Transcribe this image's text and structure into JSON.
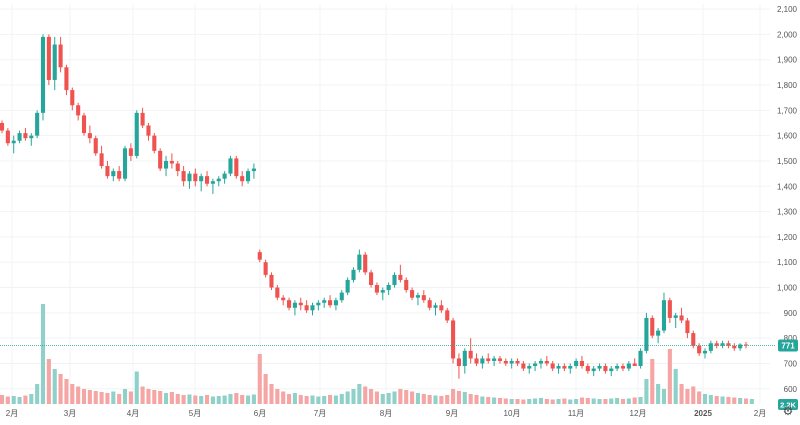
{
  "colors": {
    "up": "#26a69a",
    "down": "#ef5350",
    "up_volume": "#8fd1c9",
    "down_volume": "#f5a5a3",
    "grid": "#f0f3f5",
    "axis_text": "#555555",
    "price_line": "#26a69a",
    "price_label_bg": "#26a69a",
    "volume_label_bg": "#26a69a"
  },
  "current_price_label": "771",
  "volume_label": "2.2K",
  "settings_icon": "gear-icon",
  "chart_data": {
    "type": "candlestick",
    "title": "",
    "xlabel": "",
    "ylabel": "",
    "ylim": [
      540,
      2120
    ],
    "y_ticks": [
      "2,100",
      "2,000",
      "1,900",
      "1,800",
      "1,700",
      "1,600",
      "1,500",
      "1,400",
      "1,300",
      "1,200",
      "1,100",
      "1,000",
      "900",
      "800",
      "700",
      "600"
    ],
    "x_ticks": [
      "2月",
      "3月",
      "4月",
      "5月",
      "6月",
      "7月",
      "8月",
      "9月",
      "10月",
      "11月",
      "12月",
      "2025",
      "2月"
    ],
    "current_price": 771,
    "gaps_after_index": [
      43
    ],
    "ohlc": [
      [
        1650,
        1660,
        1610,
        1620
      ],
      [
        1620,
        1630,
        1560,
        1570
      ],
      [
        1570,
        1600,
        1530,
        1580
      ],
      [
        1580,
        1620,
        1570,
        1610
      ],
      [
        1610,
        1630,
        1580,
        1590
      ],
      [
        1590,
        1610,
        1560,
        1600
      ],
      [
        1600,
        1700,
        1590,
        1690
      ],
      [
        1690,
        2000,
        1660,
        1990
      ],
      [
        1990,
        2000,
        1800,
        1820
      ],
      [
        1820,
        1990,
        1780,
        1960
      ],
      [
        1960,
        1990,
        1850,
        1870
      ],
      [
        1870,
        1880,
        1760,
        1780
      ],
      [
        1780,
        1790,
        1700,
        1720
      ],
      [
        1720,
        1730,
        1660,
        1680
      ],
      [
        1680,
        1690,
        1600,
        1610
      ],
      [
        1610,
        1640,
        1570,
        1590
      ],
      [
        1590,
        1600,
        1520,
        1530
      ],
      [
        1530,
        1560,
        1470,
        1480
      ],
      [
        1480,
        1500,
        1430,
        1440
      ],
      [
        1440,
        1470,
        1420,
        1460
      ],
      [
        1460,
        1480,
        1420,
        1430
      ],
      [
        1430,
        1560,
        1420,
        1550
      ],
      [
        1550,
        1570,
        1500,
        1520
      ],
      [
        1520,
        1700,
        1510,
        1690
      ],
      [
        1690,
        1710,
        1630,
        1640
      ],
      [
        1640,
        1650,
        1580,
        1600
      ],
      [
        1600,
        1610,
        1530,
        1540
      ],
      [
        1540,
        1550,
        1460,
        1470
      ],
      [
        1470,
        1520,
        1440,
        1500
      ],
      [
        1500,
        1530,
        1470,
        1490
      ],
      [
        1490,
        1500,
        1440,
        1460
      ],
      [
        1460,
        1480,
        1400,
        1420
      ],
      [
        1420,
        1460,
        1390,
        1450
      ],
      [
        1450,
        1470,
        1400,
        1420
      ],
      [
        1420,
        1450,
        1380,
        1440
      ],
      [
        1440,
        1460,
        1400,
        1410
      ],
      [
        1410,
        1430,
        1370,
        1420
      ],
      [
        1420,
        1440,
        1400,
        1430
      ],
      [
        1430,
        1460,
        1410,
        1450
      ],
      [
        1450,
        1520,
        1440,
        1510
      ],
      [
        1510,
        1520,
        1430,
        1440
      ],
      [
        1440,
        1460,
        1400,
        1420
      ],
      [
        1420,
        1470,
        1410,
        1460
      ],
      [
        1460,
        1490,
        1430,
        1470
      ],
      [
        1140,
        1150,
        1100,
        1110
      ],
      [
        1100,
        1110,
        1040,
        1050
      ],
      [
        1050,
        1060,
        990,
        1000
      ],
      [
        1000,
        1010,
        950,
        960
      ],
      [
        960,
        970,
        930,
        950
      ],
      [
        950,
        960,
        910,
        920
      ],
      [
        920,
        950,
        890,
        940
      ],
      [
        940,
        960,
        910,
        930
      ],
      [
        930,
        950,
        900,
        910
      ],
      [
        910,
        940,
        890,
        930
      ],
      [
        930,
        950,
        910,
        940
      ],
      [
        940,
        960,
        920,
        950
      ],
      [
        950,
        970,
        920,
        930
      ],
      [
        930,
        960,
        910,
        950
      ],
      [
        950,
        990,
        940,
        980
      ],
      [
        980,
        1040,
        970,
        1030
      ],
      [
        1030,
        1080,
        1020,
        1070
      ],
      [
        1070,
        1150,
        1060,
        1130
      ],
      [
        1130,
        1140,
        1050,
        1060
      ],
      [
        1060,
        1070,
        1000,
        1010
      ],
      [
        1010,
        1020,
        970,
        980
      ],
      [
        980,
        1000,
        950,
        990
      ],
      [
        990,
        1020,
        970,
        1010
      ],
      [
        1010,
        1060,
        1000,
        1050
      ],
      [
        1050,
        1090,
        1020,
        1030
      ],
      [
        1030,
        1040,
        980,
        990
      ],
      [
        990,
        1000,
        950,
        960
      ],
      [
        960,
        980,
        930,
        970
      ],
      [
        970,
        990,
        940,
        950
      ],
      [
        950,
        960,
        910,
        920
      ],
      [
        920,
        940,
        890,
        930
      ],
      [
        930,
        950,
        900,
        910
      ],
      [
        910,
        920,
        860,
        870
      ],
      [
        870,
        880,
        700,
        720
      ],
      [
        720,
        740,
        640,
        690
      ],
      [
        690,
        760,
        660,
        750
      ],
      [
        750,
        800,
        700,
        720
      ],
      [
        720,
        740,
        690,
        700
      ],
      [
        700,
        730,
        680,
        720
      ],
      [
        720,
        740,
        700,
        710
      ],
      [
        710,
        730,
        690,
        720
      ],
      [
        720,
        730,
        700,
        710
      ],
      [
        710,
        720,
        690,
        700
      ],
      [
        700,
        720,
        680,
        710
      ],
      [
        710,
        720,
        690,
        700
      ],
      [
        700,
        710,
        670,
        680
      ],
      [
        680,
        700,
        660,
        690
      ],
      [
        690,
        710,
        670,
        700
      ],
      [
        700,
        720,
        680,
        710
      ],
      [
        710,
        730,
        690,
        700
      ],
      [
        700,
        710,
        670,
        680
      ],
      [
        680,
        700,
        660,
        690
      ],
      [
        690,
        700,
        670,
        680
      ],
      [
        680,
        700,
        660,
        690
      ],
      [
        690,
        720,
        680,
        710
      ],
      [
        710,
        730,
        680,
        690
      ],
      [
        690,
        700,
        660,
        670
      ],
      [
        670,
        690,
        650,
        680
      ],
      [
        680,
        700,
        670,
        690
      ],
      [
        690,
        700,
        660,
        670
      ],
      [
        670,
        690,
        650,
        680
      ],
      [
        680,
        700,
        670,
        690
      ],
      [
        690,
        700,
        670,
        680
      ],
      [
        680,
        710,
        670,
        700
      ],
      [
        700,
        720,
        690,
        690
      ],
      [
        690,
        760,
        680,
        750
      ],
      [
        750,
        900,
        740,
        880
      ],
      [
        880,
        890,
        800,
        810
      ],
      [
        810,
        840,
        780,
        830
      ],
      [
        830,
        980,
        820,
        950
      ],
      [
        950,
        960,
        860,
        880
      ],
      [
        880,
        900,
        840,
        890
      ],
      [
        890,
        920,
        860,
        870
      ],
      [
        870,
        880,
        800,
        820
      ],
      [
        820,
        830,
        760,
        770
      ],
      [
        770,
        780,
        730,
        740
      ],
      [
        740,
        760,
        720,
        750
      ],
      [
        750,
        790,
        740,
        780
      ],
      [
        780,
        790,
        760,
        770
      ],
      [
        770,
        790,
        760,
        780
      ],
      [
        780,
        790,
        760,
        770
      ],
      [
        770,
        780,
        750,
        760
      ],
      [
        760,
        780,
        750,
        775
      ],
      [
        775,
        785,
        760,
        771
      ]
    ],
    "volume": [
      180,
      150,
      160,
      140,
      170,
      200,
      400,
      2000,
      900,
      700,
      600,
      500,
      400,
      350,
      300,
      280,
      260,
      240,
      220,
      250,
      200,
      300,
      250,
      650,
      350,
      300,
      280,
      260,
      220,
      240,
      200,
      180,
      190,
      170,
      160,
      180,
      150,
      160,
      170,
      200,
      220,
      180,
      170,
      190,
      1000,
      600,
      400,
      300,
      250,
      200,
      220,
      180,
      160,
      170,
      150,
      160,
      180,
      170,
      200,
      250,
      300,
      400,
      350,
      300,
      250,
      200,
      220,
      250,
      300,
      280,
      250,
      220,
      200,
      180,
      170,
      160,
      180,
      300,
      260,
      240,
      200,
      180,
      150,
      140,
      130,
      120,
      110,
      100,
      100,
      90,
      100,
      110,
      120,
      100,
      90,
      100,
      110,
      90,
      100,
      130,
      120,
      110,
      100,
      100,
      110,
      120,
      100,
      110,
      130,
      140,
      500,
      900,
      400,
      300,
      1100,
      700,
      400,
      300,
      350,
      250,
      200,
      180,
      160,
      150,
      140,
      130,
      120,
      110,
      100
    ]
  }
}
